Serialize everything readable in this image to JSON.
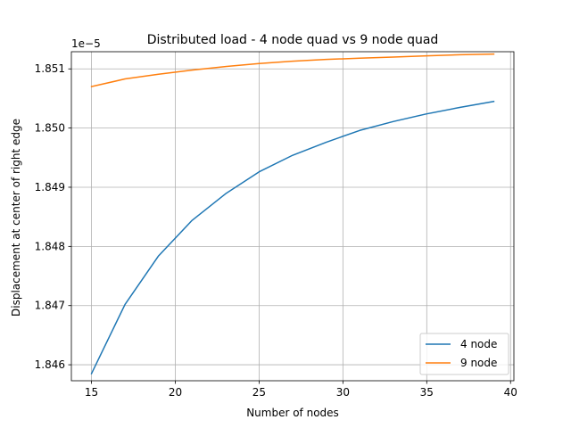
{
  "chart_data": {
    "type": "line",
    "title": "Distributed load - 4 node quad vs 9 node quad",
    "xlabel": "Number of nodes",
    "ylabel": "Displacement at center of right edge",
    "offset_text": "1e−5",
    "xlim": [
      13.8,
      40.2
    ],
    "ylim": [
      1.84573,
      1.85129
    ],
    "xticks": [
      15,
      20,
      25,
      30,
      35,
      40
    ],
    "xtick_labels": [
      "15",
      "20",
      "25",
      "30",
      "35",
      "40"
    ],
    "yticks": [
      1.846,
      1.847,
      1.848,
      1.849,
      1.85,
      1.851
    ],
    "ytick_labels": [
      "1.846",
      "1.847",
      "1.848",
      "1.849",
      "1.850",
      "1.851"
    ],
    "grid": true,
    "legend_position": "lower right",
    "x": [
      15,
      17,
      19,
      21,
      23,
      25,
      27,
      29,
      31,
      33,
      35,
      37,
      39
    ],
    "series": [
      {
        "name": "4 node",
        "color": "#1f77b4",
        "values": [
          1.84585,
          1.84702,
          1.84784,
          1.84844,
          1.84889,
          1.84926,
          1.84954,
          1.84976,
          1.84996,
          1.85011,
          1.85024,
          1.85035,
          1.85045
        ]
      },
      {
        "name": "9 node",
        "color": "#ff7f0e",
        "values": [
          1.8507,
          1.85083,
          1.85091,
          1.85098,
          1.85104,
          1.85109,
          1.85113,
          1.85116,
          1.85118,
          1.8512,
          1.85122,
          1.85124,
          1.85125
        ]
      }
    ]
  }
}
